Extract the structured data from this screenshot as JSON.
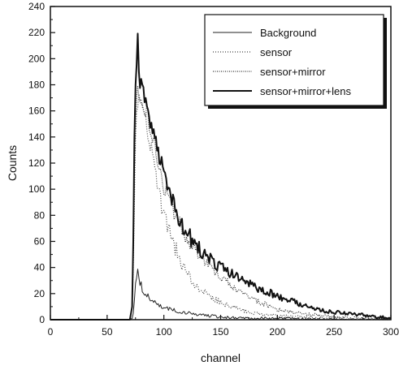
{
  "chart_data": {
    "type": "line",
    "xlabel": "channel",
    "ylabel": "Counts",
    "xlim": [
      0,
      300
    ],
    "ylim": [
      0,
      240
    ],
    "xticks": [
      0,
      50,
      100,
      150,
      200,
      250,
      300
    ],
    "yticks": [
      0,
      20,
      40,
      60,
      80,
      100,
      120,
      140,
      160,
      180,
      200,
      220,
      240
    ],
    "grid": false,
    "legend_position": "top-right",
    "series": [
      {
        "name": "Background",
        "style": "thin-solid",
        "x": [
          0,
          70,
          72,
          73,
          74,
          75,
          76,
          77,
          78,
          80,
          82,
          85,
          90,
          95,
          100,
          110,
          120,
          130,
          140,
          150,
          170,
          200,
          250,
          300
        ],
        "y": [
          0,
          0,
          1,
          5,
          15,
          28,
          32,
          38,
          30,
          26,
          22,
          18,
          15,
          11,
          9,
          7,
          5,
          4,
          3,
          2,
          1,
          1,
          0,
          0
        ]
      },
      {
        "name": "sensor",
        "style": "dotted",
        "x": [
          0,
          70,
          72,
          73,
          74,
          75,
          76,
          78,
          80,
          85,
          90,
          95,
          100,
          110,
          120,
          130,
          140,
          150,
          160,
          170,
          180,
          200,
          220,
          250,
          300
        ],
        "y": [
          0,
          0,
          10,
          40,
          90,
          140,
          160,
          170,
          165,
          150,
          125,
          100,
          80,
          55,
          35,
          25,
          18,
          13,
          10,
          7,
          5,
          3,
          2,
          1,
          0
        ]
      },
      {
        "name": "sensor+mirror",
        "style": "dashed",
        "x": [
          0,
          70,
          72,
          73,
          74,
          75,
          76,
          78,
          80,
          85,
          90,
          95,
          100,
          110,
          120,
          130,
          140,
          150,
          160,
          170,
          180,
          200,
          220,
          250,
          300
        ],
        "y": [
          0,
          0,
          10,
          50,
          110,
          150,
          170,
          175,
          170,
          160,
          140,
          120,
          100,
          80,
          62,
          50,
          40,
          32,
          26,
          20,
          15,
          8,
          5,
          2,
          0
        ]
      },
      {
        "name": "sensor+mirror+lens",
        "style": "thick-solid",
        "x": [
          0,
          70,
          72,
          73,
          74,
          75,
          76,
          77,
          78,
          80,
          82,
          85,
          88,
          90,
          95,
          100,
          105,
          110,
          115,
          120,
          125,
          130,
          140,
          150,
          160,
          170,
          180,
          190,
          200,
          210,
          220,
          230,
          240,
          250,
          260,
          270,
          280,
          290,
          300
        ],
        "y": [
          0,
          0,
          10,
          60,
          140,
          180,
          195,
          215,
          185,
          180,
          176,
          160,
          150,
          145,
          130,
          110,
          95,
          85,
          75,
          68,
          60,
          56,
          47,
          40,
          35,
          30,
          25,
          22,
          18,
          15,
          12,
          9,
          7,
          6,
          5,
          4,
          3,
          2,
          1
        ]
      }
    ]
  }
}
